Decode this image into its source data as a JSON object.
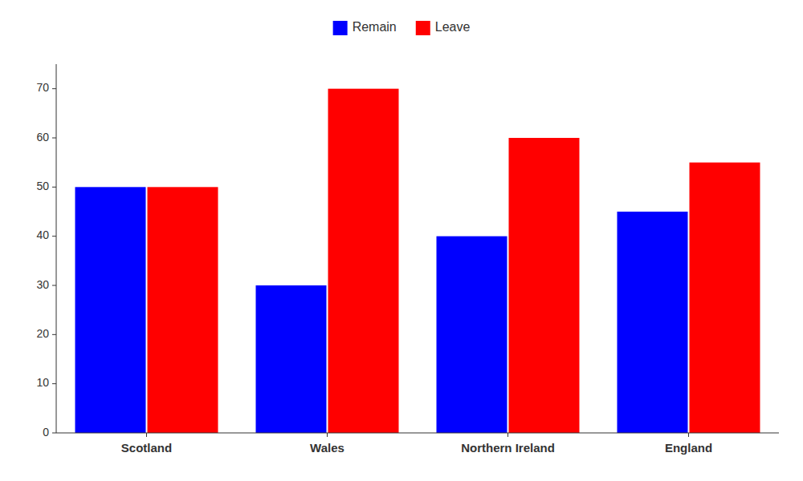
{
  "chart_data": {
    "type": "bar",
    "categories": [
      "Scotland",
      "Wales",
      "Northern Ireland",
      "England"
    ],
    "series": [
      {
        "name": "Remain",
        "color": "#0000ff",
        "values": [
          50,
          30,
          40,
          45
        ]
      },
      {
        "name": "Leave",
        "color": "#ff0000",
        "values": [
          50,
          70,
          60,
          55
        ]
      }
    ],
    "ylim": [
      0,
      75
    ],
    "yticks": [
      0,
      10,
      20,
      30,
      40,
      50,
      60,
      70
    ],
    "grid": false,
    "legend": "top"
  }
}
